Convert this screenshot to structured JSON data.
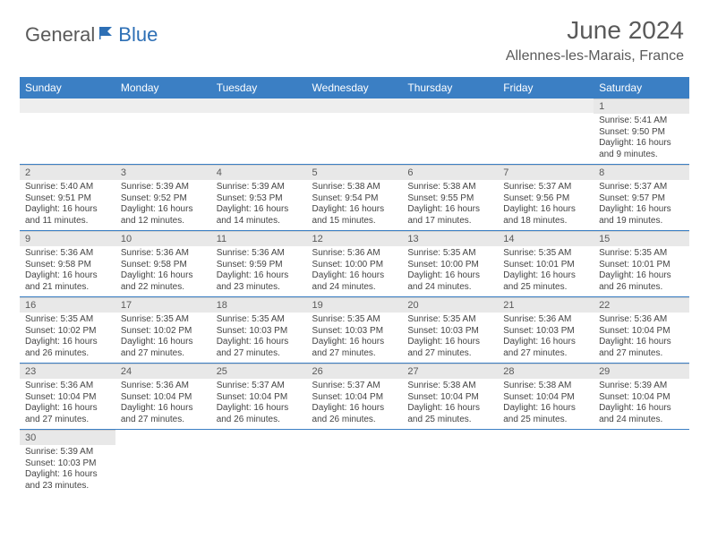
{
  "logo": {
    "text1": "General",
    "text2": "Blue"
  },
  "title": "June 2024",
  "location": "Allennes-les-Marais, France",
  "colors": {
    "header_bg": "#3b7fc4",
    "header_text": "#ffffff",
    "daynum_bg": "#e8e8e8",
    "daynum_text": "#5a5a5a",
    "body_text": "#444444",
    "cell_border": "#3b7fc4",
    "title_color": "#5a5a5a",
    "logo_gray": "#5a5a5a",
    "logo_blue": "#2d6fb5"
  },
  "fonts": {
    "title_size": 28,
    "location_size": 16,
    "header_size": 12,
    "daynum_size": 11,
    "body_size": 10
  },
  "weekdays": [
    "Sunday",
    "Monday",
    "Tuesday",
    "Wednesday",
    "Thursday",
    "Friday",
    "Saturday"
  ],
  "weeks": [
    [
      null,
      null,
      null,
      null,
      null,
      null,
      {
        "n": "1",
        "sr": "5:41 AM",
        "ss": "9:50 PM",
        "dl": "16 hours and 9 minutes."
      }
    ],
    [
      {
        "n": "2",
        "sr": "5:40 AM",
        "ss": "9:51 PM",
        "dl": "16 hours and 11 minutes."
      },
      {
        "n": "3",
        "sr": "5:39 AM",
        "ss": "9:52 PM",
        "dl": "16 hours and 12 minutes."
      },
      {
        "n": "4",
        "sr": "5:39 AM",
        "ss": "9:53 PM",
        "dl": "16 hours and 14 minutes."
      },
      {
        "n": "5",
        "sr": "5:38 AM",
        "ss": "9:54 PM",
        "dl": "16 hours and 15 minutes."
      },
      {
        "n": "6",
        "sr": "5:38 AM",
        "ss": "9:55 PM",
        "dl": "16 hours and 17 minutes."
      },
      {
        "n": "7",
        "sr": "5:37 AM",
        "ss": "9:56 PM",
        "dl": "16 hours and 18 minutes."
      },
      {
        "n": "8",
        "sr": "5:37 AM",
        "ss": "9:57 PM",
        "dl": "16 hours and 19 minutes."
      }
    ],
    [
      {
        "n": "9",
        "sr": "5:36 AM",
        "ss": "9:58 PM",
        "dl": "16 hours and 21 minutes."
      },
      {
        "n": "10",
        "sr": "5:36 AM",
        "ss": "9:58 PM",
        "dl": "16 hours and 22 minutes."
      },
      {
        "n": "11",
        "sr": "5:36 AM",
        "ss": "9:59 PM",
        "dl": "16 hours and 23 minutes."
      },
      {
        "n": "12",
        "sr": "5:36 AM",
        "ss": "10:00 PM",
        "dl": "16 hours and 24 minutes."
      },
      {
        "n": "13",
        "sr": "5:35 AM",
        "ss": "10:00 PM",
        "dl": "16 hours and 24 minutes."
      },
      {
        "n": "14",
        "sr": "5:35 AM",
        "ss": "10:01 PM",
        "dl": "16 hours and 25 minutes."
      },
      {
        "n": "15",
        "sr": "5:35 AM",
        "ss": "10:01 PM",
        "dl": "16 hours and 26 minutes."
      }
    ],
    [
      {
        "n": "16",
        "sr": "5:35 AM",
        "ss": "10:02 PM",
        "dl": "16 hours and 26 minutes."
      },
      {
        "n": "17",
        "sr": "5:35 AM",
        "ss": "10:02 PM",
        "dl": "16 hours and 27 minutes."
      },
      {
        "n": "18",
        "sr": "5:35 AM",
        "ss": "10:03 PM",
        "dl": "16 hours and 27 minutes."
      },
      {
        "n": "19",
        "sr": "5:35 AM",
        "ss": "10:03 PM",
        "dl": "16 hours and 27 minutes."
      },
      {
        "n": "20",
        "sr": "5:35 AM",
        "ss": "10:03 PM",
        "dl": "16 hours and 27 minutes."
      },
      {
        "n": "21",
        "sr": "5:36 AM",
        "ss": "10:03 PM",
        "dl": "16 hours and 27 minutes."
      },
      {
        "n": "22",
        "sr": "5:36 AM",
        "ss": "10:04 PM",
        "dl": "16 hours and 27 minutes."
      }
    ],
    [
      {
        "n": "23",
        "sr": "5:36 AM",
        "ss": "10:04 PM",
        "dl": "16 hours and 27 minutes."
      },
      {
        "n": "24",
        "sr": "5:36 AM",
        "ss": "10:04 PM",
        "dl": "16 hours and 27 minutes."
      },
      {
        "n": "25",
        "sr": "5:37 AM",
        "ss": "10:04 PM",
        "dl": "16 hours and 26 minutes."
      },
      {
        "n": "26",
        "sr": "5:37 AM",
        "ss": "10:04 PM",
        "dl": "16 hours and 26 minutes."
      },
      {
        "n": "27",
        "sr": "5:38 AM",
        "ss": "10:04 PM",
        "dl": "16 hours and 25 minutes."
      },
      {
        "n": "28",
        "sr": "5:38 AM",
        "ss": "10:04 PM",
        "dl": "16 hours and 25 minutes."
      },
      {
        "n": "29",
        "sr": "5:39 AM",
        "ss": "10:04 PM",
        "dl": "16 hours and 24 minutes."
      }
    ],
    [
      {
        "n": "30",
        "sr": "5:39 AM",
        "ss": "10:03 PM",
        "dl": "16 hours and 23 minutes."
      },
      null,
      null,
      null,
      null,
      null,
      null
    ]
  ],
  "labels": {
    "sunrise": "Sunrise:",
    "sunset": "Sunset:",
    "daylight": "Daylight:"
  }
}
